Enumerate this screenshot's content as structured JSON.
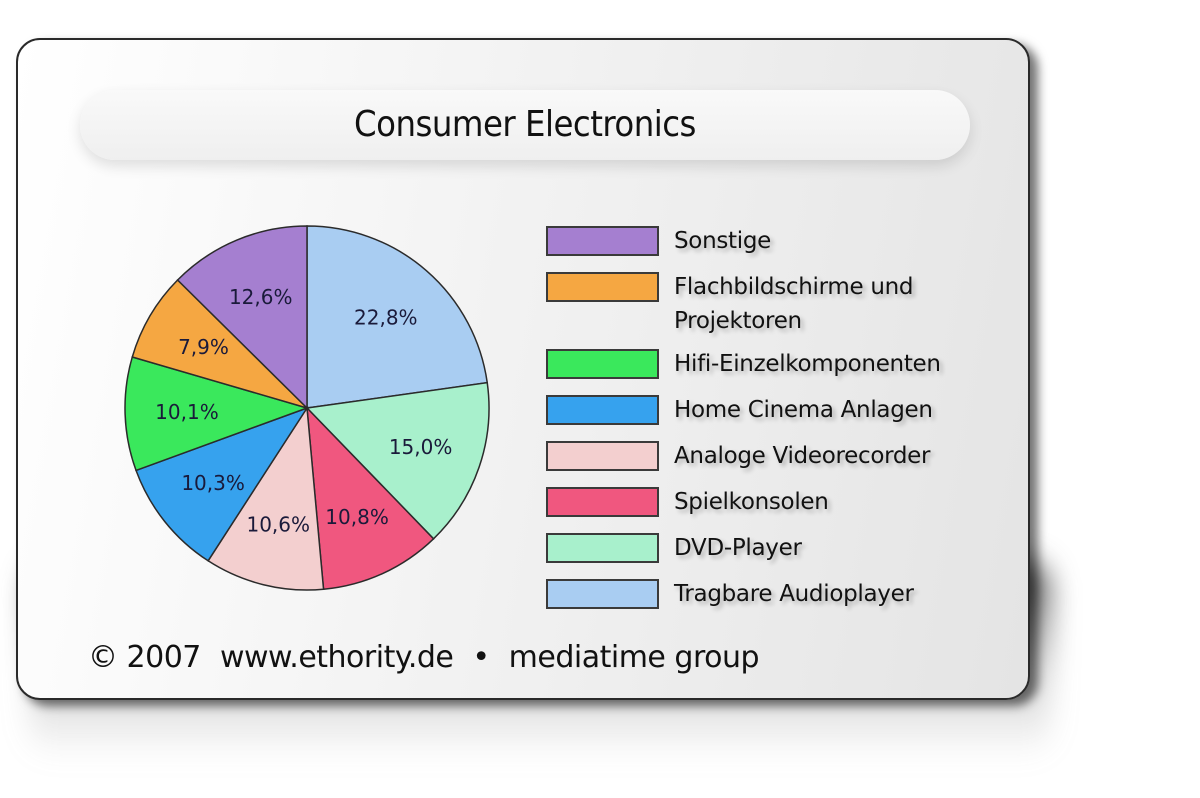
{
  "title": "Consumer Electronics",
  "footer": {
    "copyright": "© 2007",
    "website": "www.ethority.de",
    "separator": "•",
    "company": "mediatime group"
  },
  "legend": [
    {
      "label": "Sonstige",
      "color": "#a57fd0"
    },
    {
      "label": "Flachbildschirme und",
      "label2": "Projektoren",
      "color": "#f5a742"
    },
    {
      "label": "Hifi-Einzelkomponenten",
      "color": "#3ae85c"
    },
    {
      "label": "Home Cinema Anlagen",
      "color": "#36a2ee"
    },
    {
      "label": "Analoge Videorecorder",
      "color": "#f3cfcf"
    },
    {
      "label": "Spielkonsolen",
      "color": "#f0577f"
    },
    {
      "label": "DVD-Player",
      "color": "#a8f0cc"
    },
    {
      "label": "Tragbare Audioplayer",
      "color": "#a9cdf2"
    }
  ],
  "slices": [
    {
      "label": "22,8%",
      "color": "#a9cdf2"
    },
    {
      "label": "15,0%",
      "color": "#a8f0cc"
    },
    {
      "label": "10,8%",
      "color": "#f0577f"
    },
    {
      "label": "10,6%",
      "color": "#f3cfcf"
    },
    {
      "label": "10,3%",
      "color": "#36a2ee"
    },
    {
      "label": "10,1%",
      "color": "#3ae85c"
    },
    {
      "label": "7,9%",
      "color": "#f5a742"
    },
    {
      "label": "12,6%",
      "color": "#a57fd0"
    }
  ],
  "chart_data": {
    "type": "pie",
    "title": "Consumer Electronics",
    "categories": [
      "Tragbare Audioplayer",
      "DVD-Player",
      "Spielkonsolen",
      "Analoge Videorecorder",
      "Home Cinema Anlagen",
      "Hifi-Einzelkomponenten",
      "Flachbildschirme und Projektoren",
      "Sonstige"
    ],
    "values": [
      22.8,
      15.0,
      10.8,
      10.6,
      10.3,
      10.1,
      7.9,
      12.6
    ],
    "unit": "%",
    "start_angle": "12 o'clock, clockwise",
    "legend_position": "right",
    "legend_order": [
      "Sonstige",
      "Flachbildschirme und Projektoren",
      "Hifi-Einzelkomponenten",
      "Home Cinema Anlagen",
      "Analoge Videorecorder",
      "Spielkonsolen",
      "DVD-Player",
      "Tragbare Audioplayer"
    ],
    "annotation": "© 2007 www.ethority.de • mediatime group"
  }
}
